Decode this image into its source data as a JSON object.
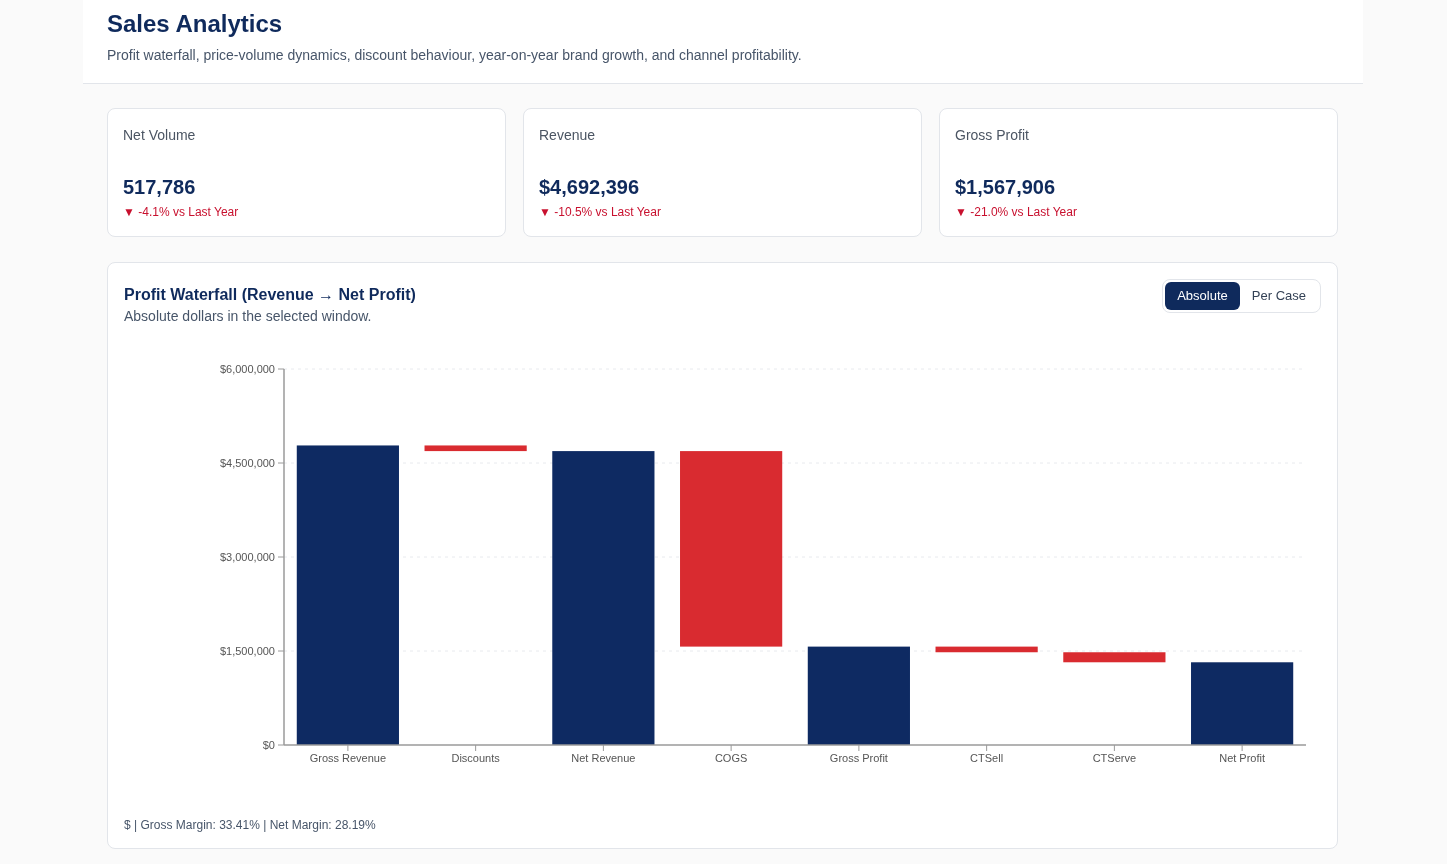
{
  "chart_data": [
    {
      "type": "other",
      "title": "Sales Analytics",
      "subtitle": "Profit waterfall, price-volume dynamics, discount behaviour, year-on-year brand growth, and channel profitability."
    },
    {
      "type": "other",
      "title": "Net Volume",
      "annotations": [
        "517,786",
        "▼ -4.1% vs Last Year"
      ]
    },
    {
      "type": "other",
      "title": "Revenue",
      "annotations": [
        "$4,692,396",
        "▼ -10.5% vs Last Year"
      ]
    },
    {
      "type": "other",
      "title": "Gross Profit",
      "annotations": [
        "$1,567,906",
        "▼ -21.0% vs Last Year"
      ]
    },
    {
      "type": "bar",
      "title": "Profit Waterfall (Revenue → Net Profit)",
      "subtitle": "Absolute dollars in the selected window.",
      "categories": [
        "Gross Revenue",
        "Discounts",
        "Net Revenue",
        "COGS",
        "Gross Profit",
        "CTSell",
        "CTServe",
        "Net Profit"
      ],
      "values": [
        4780000,
        -90000,
        4690000,
        -3120000,
        1570000,
        -90000,
        -160000,
        1320000
      ],
      "base": [
        0,
        4780000,
        0,
        4690000,
        0,
        1570000,
        1480000,
        0
      ],
      "colors": [
        "#0e2a62",
        "#d92b30",
        "#0e2a62",
        "#d92b30",
        "#0e2a62",
        "#d92b30",
        "#d92b30",
        "#0e2a62"
      ],
      "ylim": [
        0,
        6000000
      ],
      "yticks": [
        {
          "value": 0,
          "label": "$0"
        },
        {
          "value": 1500000,
          "label": "$1,500,000"
        },
        {
          "value": 3000000,
          "label": "$3,000,000"
        },
        {
          "value": 4500000,
          "label": "$4,500,000"
        },
        {
          "value": 6000000,
          "label": "$6,000,000"
        }
      ],
      "grid": "y",
      "annotations": [
        "Absolute",
        "Per Case",
        "$ | Gross Margin: 33.41% | Net Margin: 28.19%"
      ]
    }
  ]
}
